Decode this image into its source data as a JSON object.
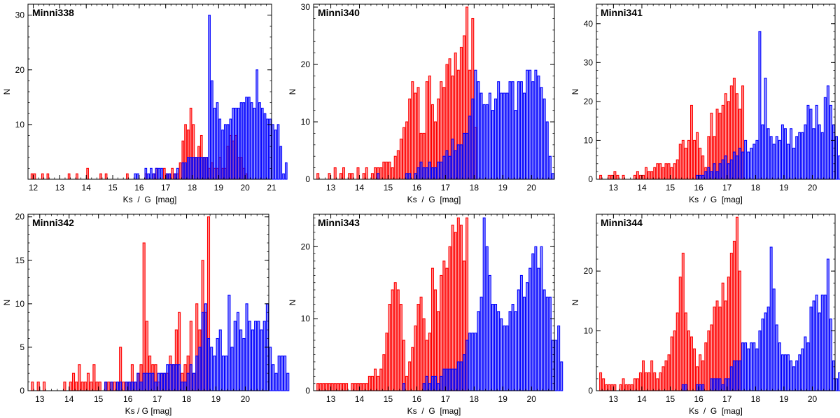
{
  "colors": {
    "ks": "#ff0000",
    "g": "#0000ff",
    "axis": "#000000"
  },
  "chart_data": [
    {
      "type": "bar",
      "title": "Minni338",
      "xlabel": "Ks  /  G  [mag]",
      "ylabel": "N",
      "xlim": [
        11.8,
        21.0
      ],
      "ylim": [
        0,
        32
      ],
      "xticks": [
        12,
        13,
        14,
        15,
        16,
        17,
        18,
        19,
        20,
        21
      ],
      "yticks": [
        10,
        20,
        30
      ],
      "bin_width": 0.1,
      "grid": false,
      "series": [
        {
          "color": "#ff0000",
          "bin_start": 11.9,
          "values": [
            1,
            1,
            0,
            0,
            1,
            0,
            1,
            0,
            0,
            0,
            0,
            0,
            0,
            0,
            1,
            0,
            0,
            1,
            0,
            0,
            0,
            2,
            0,
            0,
            0,
            0,
            1,
            0,
            1,
            0,
            0,
            0,
            0,
            0,
            0,
            0,
            1,
            0,
            0,
            0,
            0,
            0,
            0,
            1,
            0,
            0,
            1,
            2,
            0,
            0,
            2,
            1,
            1,
            2,
            1,
            1,
            3,
            7,
            10,
            9,
            13,
            10,
            4,
            6,
            8,
            4,
            4,
            2,
            3,
            2,
            2,
            4,
            2,
            2,
            6,
            8,
            7,
            8,
            4,
            4,
            2,
            1
          ]
        },
        {
          "color": "#0000ff",
          "bin_start": 15.8,
          "values": [
            1,
            1,
            0,
            0,
            2,
            1,
            2,
            1,
            2,
            2,
            2,
            0,
            1,
            1,
            0,
            1,
            2,
            0,
            3,
            3,
            4,
            4,
            4,
            4,
            4,
            4,
            4,
            4,
            30,
            18,
            13,
            14,
            11,
            9,
            10,
            10,
            11,
            13,
            13,
            13,
            14,
            14,
            15,
            15,
            14,
            13,
            20,
            14,
            13,
            12,
            11,
            11,
            10,
            9,
            10,
            6,
            1,
            3
          ]
        }
      ]
    },
    {
      "type": "bar",
      "title": "Minni340",
      "xlabel": "Ks  /  G  [mag]",
      "ylabel": "N",
      "xlim": [
        12.4,
        20.8
      ],
      "ylim": [
        0,
        30.5
      ],
      "xticks": [
        13,
        14,
        15,
        16,
        17,
        18,
        19,
        20
      ],
      "yticks": [
        0,
        10,
        20,
        30
      ],
      "bin_width": 0.1,
      "grid": false,
      "series": [
        {
          "color": "#ff0000",
          "bin_start": 12.5,
          "values": [
            1,
            0,
            0,
            0,
            1,
            0,
            2,
            0,
            1,
            2,
            0,
            1,
            1,
            0,
            2,
            0,
            1,
            2,
            0,
            1,
            2,
            2,
            2,
            3,
            3,
            3,
            2,
            4,
            5,
            7,
            9,
            10,
            14,
            17,
            15,
            16,
            8,
            8,
            17,
            18,
            13,
            10,
            14,
            17,
            16,
            20,
            21,
            18,
            22,
            19,
            23,
            25,
            30,
            19,
            28,
            9
          ]
        },
        {
          "color": "#0000ff",
          "bin_start": 14.6,
          "values": [
            1,
            0,
            0,
            0,
            0,
            0,
            0,
            0,
            0,
            0,
            1,
            1,
            0,
            1,
            2,
            3,
            2,
            2,
            3,
            2,
            2,
            3,
            3,
            4,
            5,
            4,
            7,
            5,
            6,
            6,
            8,
            8,
            11,
            14,
            19,
            17,
            15,
            13,
            13,
            15,
            12,
            14,
            17,
            15,
            15,
            15,
            17,
            17,
            12,
            17,
            17,
            15,
            19,
            19,
            17,
            19,
            18,
            16,
            14,
            10,
            4,
            1
          ]
        }
      ]
    },
    {
      "type": "bar",
      "title": "Minni341",
      "xlabel": "Ks  /  G  [mag]",
      "ylabel": "N",
      "xlim": [
        12.4,
        20.8
      ],
      "ylim": [
        0,
        45
      ],
      "xticks": [
        13,
        14,
        15,
        16,
        17,
        18,
        19,
        20
      ],
      "yticks": [
        0,
        10,
        20,
        30,
        40
      ],
      "bin_width": 0.1,
      "grid": false,
      "series": [
        {
          "color": "#ff0000",
          "bin_start": 12.5,
          "values": [
            1,
            0,
            0,
            1,
            1,
            2,
            1,
            0,
            1,
            0,
            0,
            0,
            1,
            2,
            1,
            1,
            3,
            2,
            2,
            3,
            4,
            4,
            3,
            4,
            4,
            3,
            4,
            5,
            9,
            10,
            8,
            10,
            19,
            10,
            12,
            8,
            6,
            3,
            11,
            17,
            11,
            18,
            17,
            19,
            22,
            20,
            24,
            26,
            22,
            18,
            24
          ]
        },
        {
          "color": "#0000ff",
          "bin_start": 15.9,
          "values": [
            1,
            1,
            1,
            2,
            3,
            2,
            4,
            2,
            4,
            5,
            6,
            4,
            5,
            7,
            6,
            8,
            7,
            10,
            7,
            8,
            9,
            10,
            38,
            14,
            26,
            13,
            11,
            9,
            11,
            10,
            14,
            13,
            9,
            13,
            8,
            11,
            12,
            12,
            14,
            19,
            18,
            13,
            19,
            14,
            12,
            21,
            24,
            19,
            14,
            11,
            6,
            4,
            1
          ]
        }
      ]
    },
    {
      "type": "bar",
      "title": "Minni342",
      "xlabel": "Ks / G [mag]",
      "ylabel": "N",
      "xlim": [
        12.6,
        20.8
      ],
      "ylim": [
        0,
        20.3
      ],
      "xticks": [
        13,
        14,
        15,
        16,
        17,
        18,
        19,
        20
      ],
      "yticks": [
        0,
        5,
        10,
        15,
        20
      ],
      "bin_width": 0.1,
      "grid": false,
      "series": [
        {
          "color": "#ff0000",
          "bin_start": 12.7,
          "values": [
            1,
            0,
            1,
            0,
            1,
            0,
            0,
            0,
            0,
            0,
            0,
            1,
            0,
            1,
            2,
            1,
            3,
            1,
            1,
            2,
            1,
            3,
            1,
            1,
            0,
            1,
            1,
            1,
            1,
            1,
            5,
            1,
            1,
            1,
            3,
            1,
            2,
            3,
            17,
            8,
            4,
            3,
            3,
            1,
            2,
            2,
            2,
            4,
            3,
            7,
            9,
            2,
            3,
            4,
            8,
            2,
            10,
            7,
            15,
            9,
            20
          ]
        },
        {
          "color": "#0000ff",
          "bin_start": 15.2,
          "values": [
            1,
            0,
            1,
            0,
            1,
            1,
            0,
            1,
            1,
            1,
            1,
            2,
            1,
            2,
            2,
            2,
            2,
            1,
            2,
            2,
            2,
            3,
            3,
            3,
            3,
            3,
            1,
            1,
            2,
            3,
            2,
            4,
            5,
            9,
            10,
            6,
            5,
            4,
            6,
            7,
            4,
            4,
            11,
            5,
            8,
            9,
            7,
            6,
            10,
            8,
            7,
            8,
            8,
            7,
            8,
            10,
            5,
            3,
            2,
            4,
            4,
            4,
            2
          ]
        }
      ]
    },
    {
      "type": "bar",
      "title": "Minni343",
      "xlabel": "Ks  /  G  [mag]",
      "ylabel": "N",
      "xlim": [
        12.4,
        20.8
      ],
      "ylim": [
        0,
        24.5
      ],
      "xticks": [
        13,
        14,
        15,
        16,
        17,
        18,
        19,
        20
      ],
      "yticks": [
        0,
        10,
        20
      ],
      "bin_width": 0.1,
      "grid": false,
      "series": [
        {
          "color": "#ff0000",
          "bin_start": 12.5,
          "values": [
            1,
            1,
            1,
            1,
            1,
            1,
            1,
            1,
            1,
            1,
            1,
            0,
            1,
            1,
            1,
            1,
            1,
            1,
            2,
            2,
            3,
            2,
            3,
            5,
            8,
            12,
            14,
            15,
            14,
            12,
            7,
            2,
            4,
            6,
            9,
            12,
            13,
            10,
            7,
            8,
            17,
            14,
            11,
            16,
            18,
            17,
            20,
            23,
            22,
            24,
            23,
            18,
            24
          ]
        },
        {
          "color": "#0000ff",
          "bin_start": 15.5,
          "values": [
            1,
            0,
            0,
            0,
            0,
            0,
            0,
            1,
            2,
            1,
            2,
            2,
            1,
            2,
            3,
            3,
            3,
            3,
            3,
            4,
            4,
            5,
            7,
            8,
            8,
            8,
            11,
            13,
            24,
            20,
            16,
            12,
            12,
            11,
            10,
            9,
            9,
            11,
            12,
            11,
            14,
            16,
            13,
            15,
            17,
            19,
            20,
            17,
            20,
            14,
            13,
            13,
            7,
            7,
            9,
            4
          ]
        }
      ]
    },
    {
      "type": "bar",
      "title": "Minni344",
      "xlabel": "Ks  /  G  [mag]",
      "ylabel": "N",
      "xlim": [
        12.4,
        20.8
      ],
      "ylim": [
        0,
        29.5
      ],
      "xticks": [
        13,
        14,
        15,
        16,
        17,
        18,
        19,
        20
      ],
      "yticks": [
        0,
        10,
        20
      ],
      "bin_width": 0.1,
      "grid": false,
      "series": [
        {
          "color": "#ff0000",
          "bin_start": 12.5,
          "values": [
            3,
            2,
            1,
            1,
            1,
            1,
            0,
            1,
            2,
            1,
            1,
            1,
            2,
            2,
            3,
            5,
            3,
            3,
            5,
            3,
            2,
            3,
            4,
            5,
            6,
            9,
            10,
            13,
            19,
            23,
            13,
            10,
            9,
            7,
            4,
            6,
            5,
            8,
            10,
            11,
            14,
            15,
            14,
            18,
            15,
            19,
            23,
            25,
            29,
            20
          ]
        },
        {
          "color": "#0000ff",
          "bin_start": 15.4,
          "values": [
            1,
            1,
            0,
            0,
            0,
            1,
            1,
            1,
            0,
            0,
            2,
            2,
            2,
            2,
            1,
            2,
            2,
            4,
            5,
            5,
            5,
            8,
            8,
            7,
            8,
            8,
            7,
            10,
            12,
            13,
            14,
            24,
            17,
            11,
            8,
            6,
            6,
            6,
            5,
            4,
            5,
            6,
            7,
            9,
            8,
            14,
            15,
            16,
            13,
            16,
            16,
            22,
            12,
            5,
            2,
            3
          ]
        }
      ]
    }
  ]
}
